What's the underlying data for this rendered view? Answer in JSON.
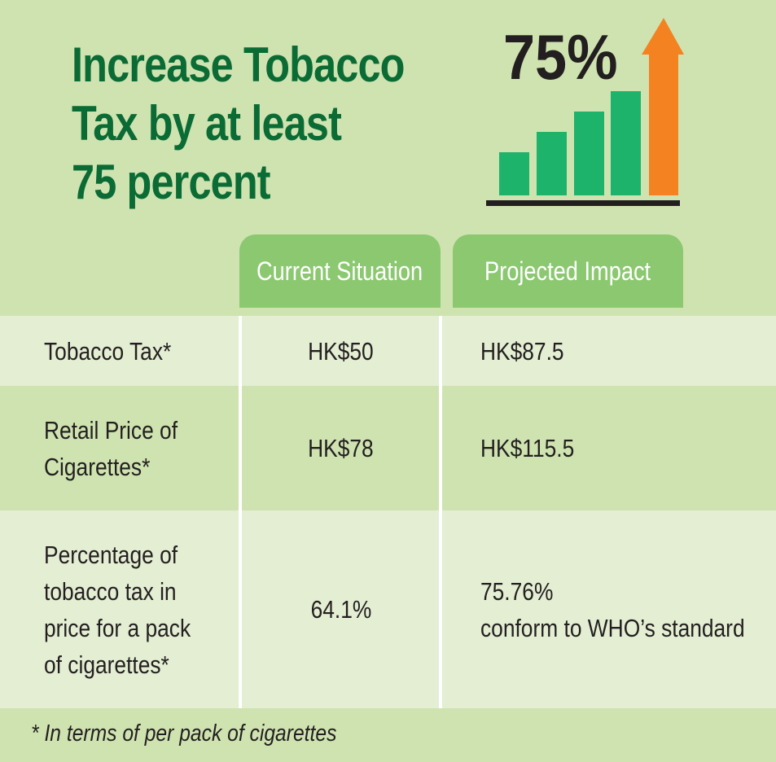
{
  "header": {
    "title_lines": [
      "Increase Tobacco",
      "Tax by at least",
      "75 percent"
    ],
    "badge": "75%"
  },
  "table": {
    "columns": [
      "Current Situation",
      "Projected Impact"
    ],
    "rows": [
      {
        "label": [
          "Tobacco Tax*"
        ],
        "current": [
          "HK$50"
        ],
        "projected": [
          "HK$87.5"
        ]
      },
      {
        "label": [
          "Retail Price of",
          "Cigarettes*"
        ],
        "current": [
          "HK$78"
        ],
        "projected": [
          "HK$115.5"
        ]
      },
      {
        "label": [
          "Percentage of",
          "tobacco tax in",
          "price for a pack",
          "of cigarettes*"
        ],
        "current": [
          "64.1%"
        ],
        "projected": [
          "75.76%",
          "conform to WHO’s standard"
        ]
      }
    ]
  },
  "footnote": "* In terms of per pack of cigarettes"
}
